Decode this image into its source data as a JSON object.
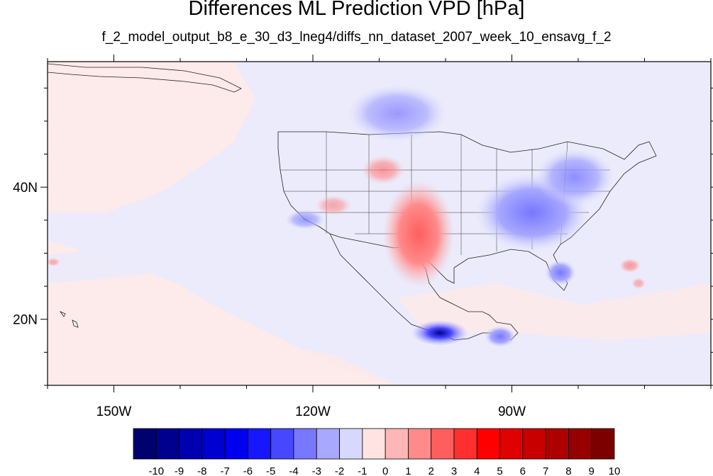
{
  "title": "Differences ML Prediction VPD [hPa]",
  "subtitle": "f_2_model_output_b8_e_30_d3_lneg4/diffs_nn_dataset_2007_week_10_ensavg_f_2",
  "map": {
    "projection": "cylindrical-equidistant",
    "lon_range": [
      -160,
      -60
    ],
    "lat_range": [
      10,
      59
    ],
    "lon_ticks": [
      {
        "value": -150,
        "label": "150W"
      },
      {
        "value": -120,
        "label": "120W"
      },
      {
        "value": -90,
        "label": "90W"
      }
    ],
    "lat_ticks": [
      {
        "value": 40,
        "label": "40N"
      },
      {
        "value": 20,
        "label": "20N"
      }
    ],
    "ocean_background_west": "#fdeaea",
    "ocean_background_east": "#ebebfb"
  },
  "colorbar": {
    "levels": [
      "-10",
      "-9",
      "-8",
      "-7",
      "-6",
      "-5",
      "-4",
      "-3",
      "-2",
      "-1",
      "0",
      "1",
      "2",
      "3",
      "4",
      "5",
      "6",
      "7",
      "8",
      "9",
      "10"
    ],
    "colors": [
      "#00006e",
      "#00008f",
      "#0000b0",
      "#0000d0",
      "#0000f0",
      "#1717ff",
      "#4747ff",
      "#7777ff",
      "#a8a8ff",
      "#d8d8ff",
      "#ffe3e3",
      "#ffb6b6",
      "#ff8a8a",
      "#ff5e5e",
      "#ff2f2f",
      "#ff0000",
      "#e00000",
      "#c80000",
      "#ae0000",
      "#960000",
      "#7c0000"
    ]
  }
}
